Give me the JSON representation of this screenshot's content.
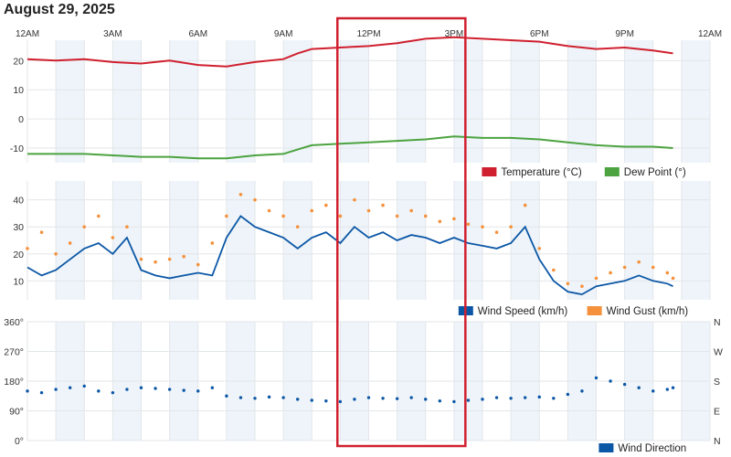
{
  "page": {
    "title": "August 29, 2025"
  },
  "colors": {
    "temperature": "#d0202f",
    "dew_point": "#4ca340",
    "wind_speed": "#0b57a6",
    "wind_gust": "#f5913c",
    "wind_direction": "#0b57a6",
    "highlight_box": "#d0202f",
    "shade_band": "#eef4f9"
  },
  "time_axis": {
    "ticks": [
      "12AM",
      "3AM",
      "6AM",
      "9AM",
      "12PM",
      "3PM",
      "6PM",
      "9PM",
      "12AM"
    ],
    "tick_hours": [
      0,
      3,
      6,
      9,
      12,
      15,
      18,
      21,
      24
    ]
  },
  "highlight": {
    "from_hour": 10.9,
    "to_hour": 15.4
  },
  "chart_data": [
    {
      "type": "line",
      "title": "",
      "ylabel": "",
      "ylim": [
        -15,
        27
      ],
      "yticks": [
        "20",
        "10",
        "0",
        "-10"
      ],
      "ytick_values": [
        20,
        10,
        0,
        -10
      ],
      "grid": true,
      "legend_position": "bottom-right",
      "series": [
        {
          "name": "Temperature (°C)",
          "x": [
            0,
            1,
            2,
            3,
            4,
            5,
            6,
            7,
            8,
            9,
            9.5,
            10,
            11,
            12,
            13,
            14,
            15,
            16,
            17,
            18,
            19,
            20,
            21,
            22,
            22.7
          ],
          "values": [
            20.5,
            20.0,
            20.5,
            19.5,
            19.0,
            20.0,
            18.5,
            18.0,
            19.5,
            20.5,
            22.5,
            24.0,
            24.5,
            25.0,
            26.0,
            27.5,
            28.0,
            27.5,
            27.0,
            26.5,
            25.0,
            24.0,
            24.5,
            23.5,
            22.5
          ]
        },
        {
          "name": "Dew Point (°)",
          "x": [
            0,
            1,
            2,
            3,
            4,
            5,
            6,
            7,
            8,
            9,
            9.5,
            10,
            11,
            12,
            13,
            14,
            15,
            16,
            17,
            18,
            19,
            20,
            21,
            22,
            22.7
          ],
          "values": [
            -12.0,
            -12.0,
            -12.0,
            -12.5,
            -13.0,
            -13.0,
            -13.5,
            -13.5,
            -12.5,
            -12.0,
            -10.5,
            -9.0,
            -8.5,
            -8.0,
            -7.5,
            -7.0,
            -6.0,
            -6.5,
            -6.5,
            -7.0,
            -8.0,
            -9.0,
            -9.5,
            -9.5,
            -10.0
          ]
        }
      ]
    },
    {
      "type": "line",
      "title": "",
      "ylabel": "",
      "ylim": [
        3,
        47
      ],
      "yticks": [
        "40",
        "30",
        "20",
        "10"
      ],
      "ytick_values": [
        40,
        30,
        20,
        10
      ],
      "grid": true,
      "legend_position": "bottom-right",
      "series": [
        {
          "name": "Wind Speed (km/h)",
          "x": [
            0,
            0.5,
            1,
            1.5,
            2,
            2.5,
            3,
            3.5,
            4,
            4.5,
            5,
            5.5,
            6,
            6.5,
            7,
            7.5,
            8,
            8.5,
            9,
            9.5,
            10,
            10.5,
            11,
            11.5,
            12,
            12.5,
            13,
            13.5,
            14,
            14.5,
            15,
            15.5,
            16,
            16.5,
            17,
            17.5,
            18,
            18.5,
            19,
            19.5,
            20,
            20.5,
            21,
            21.5,
            22,
            22.5,
            22.7
          ],
          "values": [
            15,
            12,
            14,
            18,
            22,
            24,
            20,
            26,
            14,
            12,
            11,
            12,
            13,
            12,
            26,
            34,
            30,
            28,
            26,
            22,
            26,
            28,
            24,
            30,
            26,
            28,
            25,
            27,
            26,
            24,
            26,
            24,
            23,
            22,
            24,
            30,
            18,
            10,
            6,
            5,
            8,
            9,
            10,
            12,
            10,
            9,
            8
          ]
        },
        {
          "name": "Wind Gust (km/h)",
          "x": [
            0,
            0.5,
            1,
            1.5,
            2,
            2.5,
            3,
            3.5,
            4,
            4.5,
            5,
            5.5,
            6,
            6.5,
            7,
            7.5,
            8,
            8.5,
            9,
            9.5,
            10,
            10.5,
            11,
            11.5,
            12,
            12.5,
            13,
            13.5,
            14,
            14.5,
            15,
            15.5,
            16,
            16.5,
            17,
            17.5,
            18,
            18.5,
            19,
            19.5,
            20,
            20.5,
            21,
            21.5,
            22,
            22.5,
            22.7
          ],
          "values": [
            22,
            28,
            20,
            24,
            30,
            34,
            26,
            30,
            18,
            17,
            18,
            19,
            16,
            24,
            34,
            42,
            40,
            36,
            34,
            30,
            36,
            38,
            34,
            40,
            36,
            38,
            34,
            36,
            34,
            32,
            33,
            31,
            30,
            28,
            30,
            38,
            22,
            14,
            9,
            8,
            11,
            13,
            15,
            17,
            15,
            13,
            11
          ]
        }
      ]
    },
    {
      "type": "scatter",
      "title": "",
      "ylabel": "",
      "ylim": [
        0,
        360
      ],
      "yticks": [
        "360°",
        "270°",
        "180°",
        "90°",
        "0°"
      ],
      "ytick_values": [
        360,
        270,
        180,
        90,
        0
      ],
      "right_ticks": [
        "N",
        "W",
        "S",
        "E",
        "N"
      ],
      "grid": true,
      "legend_position": "bottom-right",
      "series": [
        {
          "name": "Wind Direction",
          "x": [
            0,
            0.5,
            1,
            1.5,
            2,
            2.5,
            3,
            3.5,
            4,
            4.5,
            5,
            5.5,
            6,
            6.5,
            7,
            7.5,
            8,
            8.5,
            9,
            9.5,
            10,
            10.5,
            11,
            11.5,
            12,
            12.5,
            13,
            13.5,
            14,
            14.5,
            15,
            15.5,
            16,
            16.5,
            17,
            17.5,
            18,
            18.5,
            19,
            19.5,
            20,
            20.5,
            21,
            21.5,
            22,
            22.5,
            22.7
          ],
          "values": [
            150,
            145,
            155,
            160,
            165,
            150,
            145,
            155,
            160,
            158,
            155,
            152,
            150,
            160,
            135,
            130,
            128,
            132,
            130,
            125,
            122,
            120,
            118,
            125,
            130,
            128,
            127,
            130,
            125,
            120,
            118,
            122,
            125,
            130,
            128,
            130,
            132,
            128,
            140,
            150,
            190,
            180,
            170,
            160,
            150,
            155,
            160
          ]
        }
      ]
    }
  ],
  "legends": [
    [
      {
        "label": "Temperature (°C)",
        "color_key": "temperature"
      },
      {
        "label": "Dew Point (°)",
        "color_key": "dew_point"
      }
    ],
    [
      {
        "label": "Wind Speed (km/h)",
        "color_key": "wind_speed"
      },
      {
        "label": "Wind Gust (km/h)",
        "color_key": "wind_gust"
      }
    ],
    [
      {
        "label": "Wind Direction",
        "color_key": "wind_direction"
      }
    ]
  ]
}
